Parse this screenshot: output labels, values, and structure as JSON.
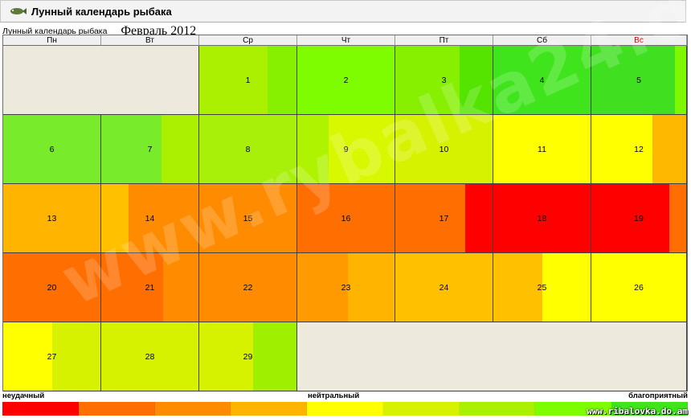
{
  "header": {
    "title": "Лунный календарь рыбака",
    "subtitle": "Лунный календарь рыбака",
    "month": "Февраль 2012"
  },
  "weekdays": [
    "Пн",
    "Вт",
    "Ср",
    "Чт",
    "Пт",
    "Сб",
    "Вс"
  ],
  "calendar": {
    "leading_empty_days": 2,
    "days": [
      {
        "d": "1",
        "c1": "#aaf000",
        "c2": "#86f000",
        "split": 0.7
      },
      {
        "d": "2",
        "c1": "#7efc00",
        "c2": "#7efc00",
        "split": 1.0
      },
      {
        "d": "3",
        "c1": "#86f000",
        "c2": "#55e400",
        "split": 0.66
      },
      {
        "d": "4",
        "c1": "#3fe41c",
        "c2": "#3fe41c",
        "split": 1.0
      },
      {
        "d": "5",
        "c1": "#40e020",
        "c2": "#7ef800",
        "split": 0.88
      },
      {
        "d": "6",
        "c1": "#78ec2a",
        "c2": "#78ec2a",
        "split": 1.0
      },
      {
        "d": "7",
        "c1": "#78ec2a",
        "c2": "#aaf000",
        "split": 0.62
      },
      {
        "d": "8",
        "c1": "#a8f00a",
        "c2": "#a8f00a",
        "split": 1.0
      },
      {
        "d": "9",
        "c1": "#b0f300",
        "c2": "#d8f800",
        "split": 0.32
      },
      {
        "d": "10",
        "c1": "#d6f200",
        "c2": "#d6f200",
        "split": 1.0
      },
      {
        "d": "11",
        "c1": "#ffff00",
        "c2": "#ffff00",
        "split": 1.0
      },
      {
        "d": "12",
        "c1": "#ffff00",
        "c2": "#ffb800",
        "split": 0.64
      },
      {
        "d": "13",
        "c1": "#ffb400",
        "c2": "#ffb400",
        "split": 1.0
      },
      {
        "d": "14",
        "c1": "#ffc000",
        "c2": "#ff8c00",
        "split": 0.28
      },
      {
        "d": "15",
        "c1": "#ff8c00",
        "c2": "#ff8c00",
        "split": 1.0
      },
      {
        "d": "16",
        "c1": "#ff6e00",
        "c2": "#ff6e00",
        "split": 1.0
      },
      {
        "d": "17",
        "c1": "#ff6e00",
        "c2": "#ff0000",
        "split": 0.72
      },
      {
        "d": "18",
        "c1": "#ff0000",
        "c2": "#ff0000",
        "split": 1.0
      },
      {
        "d": "19",
        "c1": "#ff0000",
        "c2": "#ff6e00",
        "split": 0.82
      },
      {
        "d": "20",
        "c1": "#ff6e00",
        "c2": "#ff6e00",
        "split": 1.0
      },
      {
        "d": "21",
        "c1": "#ff6e00",
        "c2": "#ff8c00",
        "split": 0.64
      },
      {
        "d": "22",
        "c1": "#ff8c00",
        "c2": "#ff8c00",
        "split": 1.0
      },
      {
        "d": "23",
        "c1": "#ff9a00",
        "c2": "#ffb400",
        "split": 0.52
      },
      {
        "d": "24",
        "c1": "#ffc000",
        "c2": "#ffc000",
        "split": 1.0
      },
      {
        "d": "25",
        "c1": "#ffc000",
        "c2": "#ffff00",
        "split": 0.5
      },
      {
        "d": "26",
        "c1": "#ffff00",
        "c2": "#ffff00",
        "split": 1.0
      },
      {
        "d": "27",
        "c1": "#ffff00",
        "c2": "#d6f200",
        "split": 0.5
      },
      {
        "d": "28",
        "c1": "#d6f200",
        "c2": "#d6f200",
        "split": 1.0
      },
      {
        "d": "29",
        "c1": "#d6f200",
        "c2": "#9ef000",
        "split": 0.55
      }
    ]
  },
  "legend": {
    "bad": "неудачный",
    "neutral": "нейтральный",
    "good": "благоприятный",
    "colors": [
      "#ff0000",
      "#ff6e00",
      "#ff8c00",
      "#ffb400",
      "#ffff00",
      "#d6f200",
      "#aaf000",
      "#7efc00",
      "#3fe41c"
    ]
  },
  "watermark": "www.rybalka24.de",
  "site": "www.ribalovka.do.am"
}
